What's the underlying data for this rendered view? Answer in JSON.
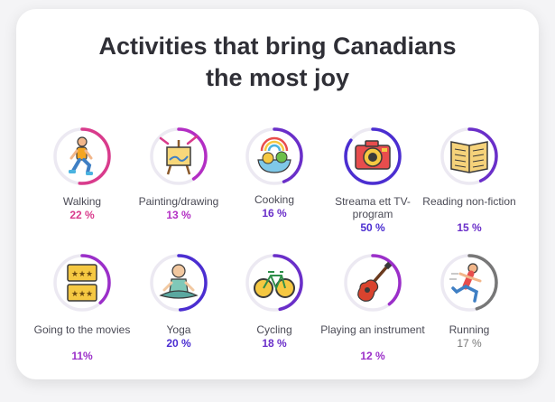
{
  "title_line1": "Activities that bring Canadians",
  "title_line2": "the most joy",
  "colors": {
    "pink": "#d93b8c",
    "purple": "#7b2cc9",
    "indigo": "#4b2ed1",
    "gray": "#777777",
    "track": "#ece9f2"
  },
  "activities": [
    {
      "label": "Walking",
      "percent": "22 %",
      "value": 22,
      "icon": "walking-person-icon",
      "color": "#d93b8c"
    },
    {
      "label": "Painting/drawing",
      "percent": "13 %",
      "value": 13,
      "icon": "easel-icon",
      "color": "#b32ec4"
    },
    {
      "label": "Cooking",
      "percent": "16 %",
      "value": 16,
      "icon": "food-bowl-icon",
      "color": "#6a2fc9"
    },
    {
      "label": "Streama ett TV-program",
      "percent": "50 %",
      "value": 50,
      "icon": "camera-icon",
      "color": "#4b2ed1"
    },
    {
      "label": "Reading non-fiction",
      "percent": "15 %",
      "value": 15,
      "icon": "book-icon",
      "color": "#6a2fc9"
    },
    {
      "label": "Going to the movies",
      "percent": "11%",
      "value": 11,
      "icon": "movie-tickets-icon",
      "color": "#9b2fc9"
    },
    {
      "label": "Yoga",
      "percent": "20 %",
      "value": 20,
      "icon": "yoga-person-icon",
      "color": "#4b2ed1"
    },
    {
      "label": "Cycling",
      "percent": "18 %",
      "value": 18,
      "icon": "bicycle-icon",
      "color": "#6a2fc9"
    },
    {
      "label": "Playing an instrument",
      "percent": "12 %",
      "value": 12,
      "icon": "guitar-icon",
      "color": "#9b2fc9"
    },
    {
      "label": "Running",
      "percent": "17 %",
      "value": 17,
      "icon": "running-person-icon",
      "color": "#777777"
    }
  ]
}
